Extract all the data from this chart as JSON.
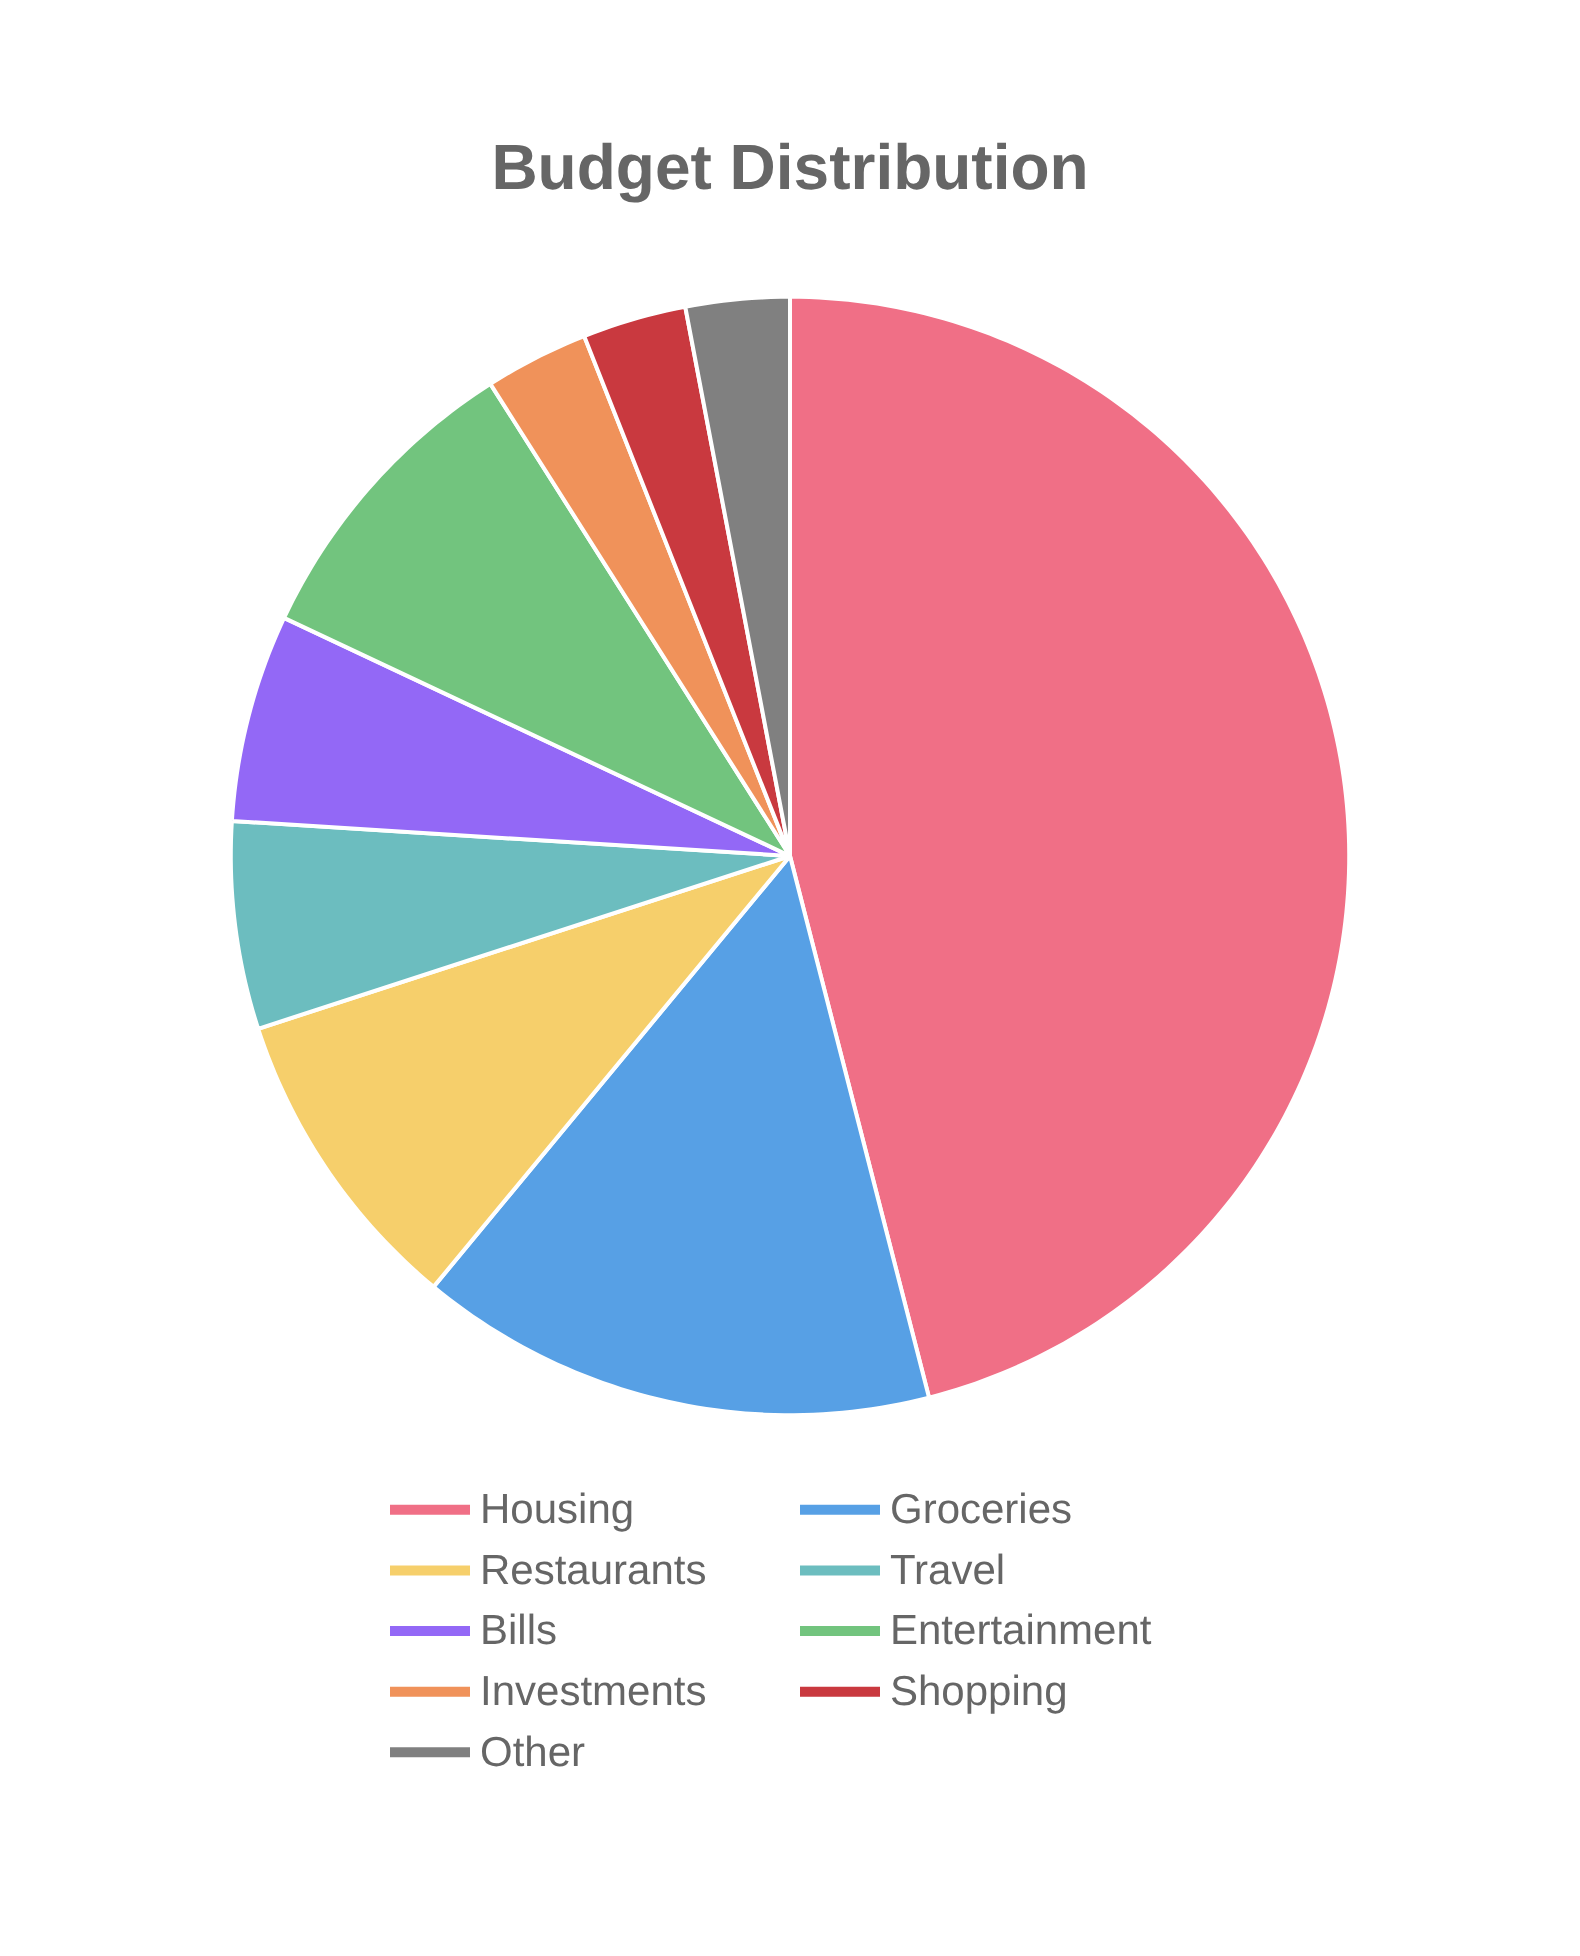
{
  "chart_data": {
    "type": "pie",
    "title": "Budget Distribution",
    "categories": [
      "Housing",
      "Groceries",
      "Restaurants",
      "Travel",
      "Bills",
      "Entertainment",
      "Investments",
      "Shopping",
      "Other"
    ],
    "values": [
      46,
      15,
      9,
      6,
      6,
      9,
      3,
      3,
      3
    ],
    "colors": [
      "#f06f86",
      "#57a0e5",
      "#f6cf6b",
      "#6cbdbf",
      "#9368f6",
      "#72c47e",
      "#f0925a",
      "#c9393f",
      "#808080"
    ],
    "legend": "bottom"
  }
}
